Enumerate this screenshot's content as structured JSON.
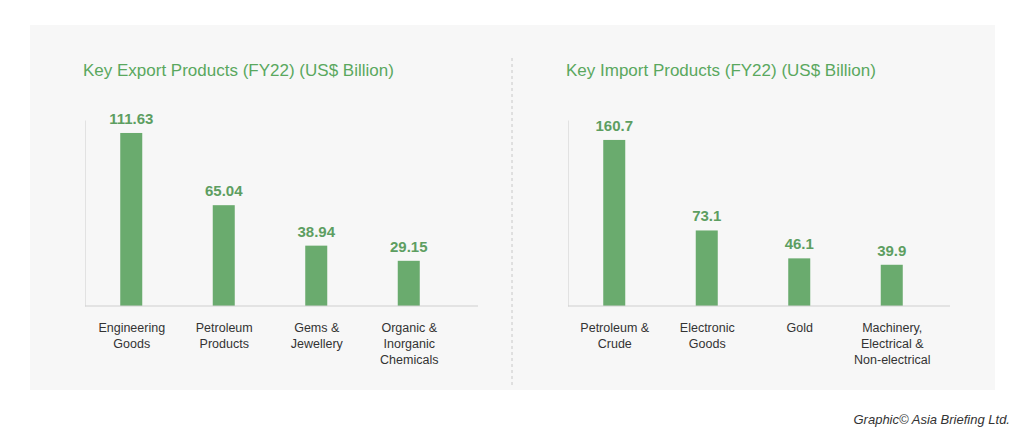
{
  "chart_data": [
    {
      "type": "bar",
      "title": "Key Export Products (FY22) (US$ Billion)",
      "categories": [
        "Engineering Goods",
        "Petroleum Products",
        "Gems & Jewellery",
        "Organic & Inorganic Chemicals"
      ],
      "values": [
        111.63,
        65.04,
        38.94,
        29.15
      ],
      "color": "#6aab6e",
      "ylim": [
        0,
        120
      ],
      "data_labels": true,
      "tick_labels": "x",
      "grid": false
    },
    {
      "type": "bar",
      "title": "Key Import Products (FY22) (US$ Billion)",
      "categories": [
        "Petroleum & Crude",
        "Electronic Goods",
        "Gold",
        "Machinery, Electrical & Non-electrical"
      ],
      "values": [
        160.7,
        73.1,
        46.1,
        39.9
      ],
      "color": "#6aab6e",
      "ylim": [
        0,
        180
      ],
      "data_labels": true,
      "tick_labels": "x",
      "grid": false
    }
  ],
  "credit": "Graphic© Asia Briefing Ltd."
}
